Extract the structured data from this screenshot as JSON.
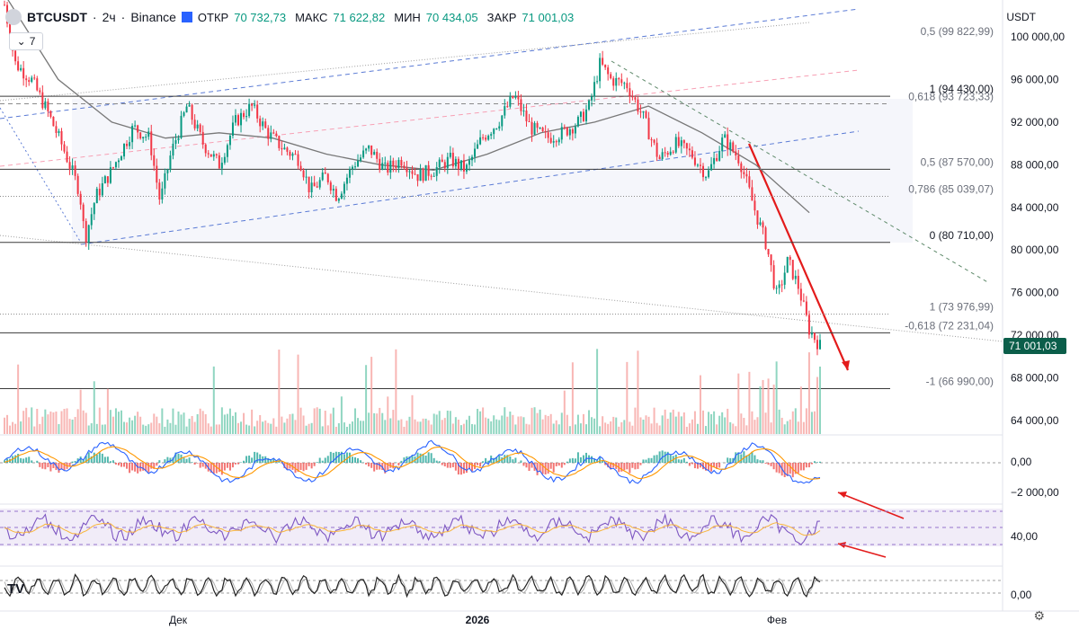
{
  "header": {
    "symbol": "BTCUSDT",
    "interval": "2ч",
    "exchange": "Binance",
    "open_label": "ОТКР",
    "open_value": "70 732,73",
    "high_label": "МАКС",
    "high_value": "71 622,82",
    "low_label": "МИН",
    "low_value": "70 434,05",
    "close_label": "ЗАКР",
    "close_value": "71 001,03",
    "indicators_count": "7",
    "currency": "USDT"
  },
  "colors": {
    "up": "#089981",
    "down": "#f23645",
    "last_price_bg": "#0b5e4a",
    "fib_blue": "#2962ff",
    "fib_pink": "#f7a1b5",
    "trend_red": "#e31b1b",
    "rsi": "#7e57c2",
    "ma": "#787878"
  },
  "chart_data": {
    "type": "line",
    "title": "BTCUSDT · 2ч · Binance",
    "price_axis": {
      "ylim": [
        62500,
        104000
      ],
      "ticks": [
        64000,
        68000,
        72000,
        76000,
        80000,
        84000,
        88000,
        92000,
        96000,
        100000
      ],
      "tick_labels": [
        "64 000,00",
        "68 000,00",
        "72 000,00",
        "76 000,00",
        "80 000,00",
        "84 000,00",
        "88 000,00",
        "92 000,00",
        "96 000,00",
        "100 000,00"
      ]
    },
    "time_axis_labels": [
      "Дек",
      "2026",
      "Фев"
    ],
    "last_price": 71001.03,
    "last_price_label": "71 001,03",
    "price_series": [
      {
        "t": 0,
        "p": 103000
      },
      {
        "t": 2,
        "p": 97500
      },
      {
        "t": 5,
        "p": 96000
      },
      {
        "t": 8,
        "p": 93000
      },
      {
        "t": 11,
        "p": 89500
      },
      {
        "t": 14,
        "p": 85500
      },
      {
        "t": 15,
        "p": 81000
      },
      {
        "t": 17,
        "p": 85000
      },
      {
        "t": 20,
        "p": 87500
      },
      {
        "t": 24,
        "p": 91500
      },
      {
        "t": 27,
        "p": 90500
      },
      {
        "t": 29,
        "p": 84500
      },
      {
        "t": 31,
        "p": 89000
      },
      {
        "t": 34,
        "p": 93500
      },
      {
        "t": 37,
        "p": 90000
      },
      {
        "t": 40,
        "p": 88000
      },
      {
        "t": 43,
        "p": 92000
      },
      {
        "t": 46,
        "p": 93500
      },
      {
        "t": 49,
        "p": 91000
      },
      {
        "t": 52,
        "p": 89500
      },
      {
        "t": 55,
        "p": 88500
      },
      {
        "t": 57,
        "p": 85500
      },
      {
        "t": 60,
        "p": 87000
      },
      {
        "t": 62,
        "p": 85000
      },
      {
        "t": 65,
        "p": 88000
      },
      {
        "t": 68,
        "p": 89500
      },
      {
        "t": 71,
        "p": 87500
      },
      {
        "t": 74,
        "p": 88500
      },
      {
        "t": 77,
        "p": 87000
      },
      {
        "t": 80,
        "p": 87500
      },
      {
        "t": 83,
        "p": 88500
      },
      {
        "t": 86,
        "p": 87500
      },
      {
        "t": 89,
        "p": 90500
      },
      {
        "t": 92,
        "p": 92000
      },
      {
        "t": 95,
        "p": 94500
      },
      {
        "t": 98,
        "p": 91500
      },
      {
        "t": 101,
        "p": 90500
      },
      {
        "t": 104,
        "p": 91000
      },
      {
        "t": 107,
        "p": 92000
      },
      {
        "t": 109,
        "p": 93500
      },
      {
        "t": 111,
        "p": 97500
      },
      {
        "t": 113,
        "p": 96000
      },
      {
        "t": 116,
        "p": 95500
      },
      {
        "t": 119,
        "p": 92500
      },
      {
        "t": 122,
        "p": 88500
      },
      {
        "t": 125,
        "p": 90000
      },
      {
        "t": 128,
        "p": 89000
      },
      {
        "t": 131,
        "p": 87000
      },
      {
        "t": 134,
        "p": 90500
      },
      {
        "t": 137,
        "p": 88500
      },
      {
        "t": 140,
        "p": 83500
      },
      {
        "t": 142,
        "p": 80500
      },
      {
        "t": 144,
        "p": 75500
      },
      {
        "t": 146,
        "p": 79000
      },
      {
        "t": 148,
        "p": 76500
      },
      {
        "t": 150,
        "p": 72500
      },
      {
        "t": 152,
        "p": 71001
      }
    ],
    "moving_average": [
      {
        "t": 0,
        "p": 104000
      },
      {
        "t": 10,
        "p": 96000
      },
      {
        "t": 20,
        "p": 92000
      },
      {
        "t": 30,
        "p": 90500
      },
      {
        "t": 40,
        "p": 91000
      },
      {
        "t": 50,
        "p": 90500
      },
      {
        "t": 60,
        "p": 89000
      },
      {
        "t": 70,
        "p": 88000
      },
      {
        "t": 80,
        "p": 87500
      },
      {
        "t": 90,
        "p": 89000
      },
      {
        "t": 100,
        "p": 91000
      },
      {
        "t": 110,
        "p": 92000
      },
      {
        "t": 120,
        "p": 93500
      },
      {
        "t": 130,
        "p": 91000
      },
      {
        "t": 140,
        "p": 88000
      },
      {
        "t": 150,
        "p": 83500
      }
    ],
    "horizontal_levels": [
      {
        "price": 94430,
        "label": "1 (94 430,00)",
        "style": "solid"
      },
      {
        "price": 80710,
        "label": "0 (80 710,00)",
        "style": "solid"
      },
      {
        "price": 87570,
        "label": "0,5 (87 570,00)",
        "style": "solid"
      },
      {
        "price": 85039.07,
        "label": "0,786 (85 039,07)",
        "style": "dotted"
      },
      {
        "price": 93723.33,
        "label": "0,618 (93 723,33)",
        "style": "dashed"
      },
      {
        "price": 99822.99,
        "label": "0,5 (99 822,99)",
        "style": "none"
      },
      {
        "price": 73976.99,
        "label": "1 (73 976,99)",
        "style": "dotted"
      },
      {
        "price": 72231.04,
        "label": "-0,618 (72 231,04)",
        "style": "solid"
      },
      {
        "price": 66990,
        "label": "-1 (66 990,00)",
        "style": "solid"
      }
    ],
    "macd": {
      "tick_labels": [
        "0,00",
        "−2 000,00"
      ]
    },
    "rsi": {
      "tick_labels": [
        "40,00"
      ]
    },
    "stoch": {
      "tick_labels": [
        "0,00"
      ]
    }
  }
}
